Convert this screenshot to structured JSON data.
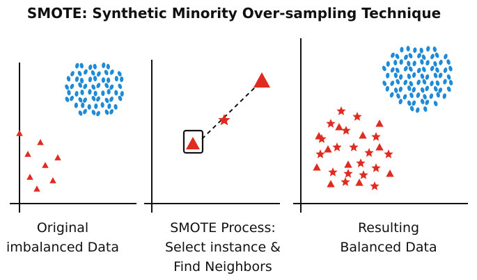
{
  "title": "SMOTE: Synthetic Minority Over-sampling Technique",
  "panels": [
    {
      "caption": [
        "Original",
        "imbalanced Data"
      ]
    },
    {
      "caption": [
        "SMOTE Process:",
        "Select instance &",
        "Find Neighbors"
      ]
    },
    {
      "caption": [
        "Resulting",
        "Balanced Data"
      ]
    }
  ]
}
